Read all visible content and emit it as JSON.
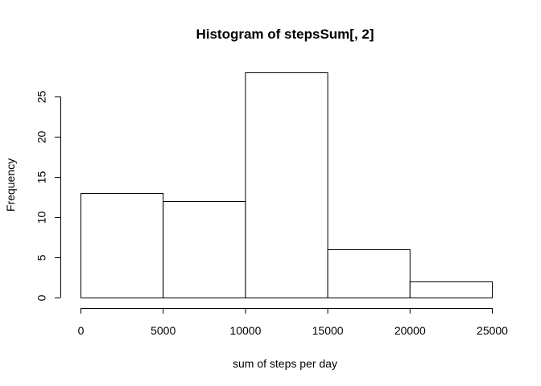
{
  "chart_data": {
    "type": "bar",
    "title": "Histogram of stepsSum[, 2]",
    "xlabel": "sum of steps per day",
    "ylabel": "Frequency",
    "bins": [
      {
        "start": 0,
        "end": 5000,
        "count": 13
      },
      {
        "start": 5000,
        "end": 10000,
        "count": 12
      },
      {
        "start": 10000,
        "end": 15000,
        "count": 28
      },
      {
        "start": 15000,
        "end": 20000,
        "count": 6
      },
      {
        "start": 20000,
        "end": 25000,
        "count": 2
      }
    ],
    "xlim": [
      0,
      25000
    ],
    "ylim": [
      0,
      28
    ],
    "xticks": [
      0,
      5000,
      10000,
      15000,
      20000,
      25000
    ],
    "yticks": [
      0,
      5,
      10,
      15,
      20,
      25
    ],
    "grid": false
  }
}
